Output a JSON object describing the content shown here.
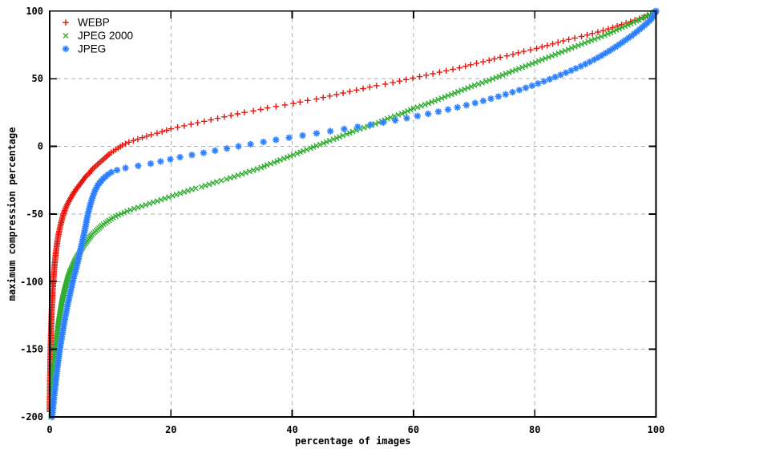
{
  "chart_data": {
    "type": "scatter",
    "title": "",
    "xlabel": "percentage of images",
    "ylabel": "maximum compression percentage",
    "xlim": [
      0,
      100
    ],
    "ylim": [
      -200,
      100
    ],
    "xticks": [
      0,
      20,
      40,
      60,
      80,
      100
    ],
    "yticks": [
      -200,
      -150,
      -100,
      -50,
      0,
      50,
      100
    ],
    "grid": true,
    "grid_color": "#b0b0b0",
    "axis_color": "#000000",
    "legend": {
      "position": "top-left",
      "entries": [
        {
          "label": "WEBP",
          "marker": "plus",
          "color": "#e8140c"
        },
        {
          "label": "JPEG 2000",
          "marker": "cross",
          "color": "#2fae2f"
        },
        {
          "label": "JPEG",
          "marker": "asterisk",
          "color": "#2c7fff"
        }
      ]
    },
    "series": [
      {
        "name": "WEBP",
        "marker": "plus",
        "color": "#e8140c",
        "marker_y_step": 1.1,
        "points": [
          [
            0,
            -196
          ],
          [
            0.05,
            -178
          ],
          [
            0.1,
            -162
          ],
          [
            0.15,
            -150
          ],
          [
            0.2,
            -141
          ],
          [
            0.3,
            -126
          ],
          [
            0.4,
            -115
          ],
          [
            0.5,
            -106
          ],
          [
            0.65,
            -96
          ],
          [
            0.8,
            -88
          ],
          [
            1.0,
            -79
          ],
          [
            1.2,
            -72
          ],
          [
            1.5,
            -64
          ],
          [
            1.8,
            -58
          ],
          [
            2.2,
            -51
          ],
          [
            2.6,
            -46
          ],
          [
            3,
            -42
          ],
          [
            3.5,
            -38
          ],
          [
            4,
            -34
          ],
          [
            4.5,
            -31
          ],
          [
            5,
            -28
          ],
          [
            5.5,
            -25
          ],
          [
            6,
            -22
          ],
          [
            6.5,
            -20
          ],
          [
            7,
            -17
          ],
          [
            7.5,
            -15
          ],
          [
            8,
            -13
          ],
          [
            8.5,
            -11
          ],
          [
            9,
            -9
          ],
          [
            9.5,
            -7
          ],
          [
            10,
            -5
          ],
          [
            10.7,
            -3
          ],
          [
            11.4,
            -1
          ],
          [
            12,
            1
          ],
          [
            13,
            3
          ],
          [
            14,
            4.5
          ],
          [
            15,
            6
          ],
          [
            16,
            7.5
          ],
          [
            17,
            9
          ],
          [
            18,
            10
          ],
          [
            19,
            11.5
          ],
          [
            20,
            13
          ],
          [
            22,
            15
          ],
          [
            24,
            17
          ],
          [
            26,
            19
          ],
          [
            28,
            21
          ],
          [
            30,
            23
          ],
          [
            32,
            25
          ],
          [
            34,
            26.5
          ],
          [
            36,
            28.5
          ],
          [
            38,
            30
          ],
          [
            40,
            31.5
          ],
          [
            42,
            33.5
          ],
          [
            44,
            35
          ],
          [
            46,
            37
          ],
          [
            48,
            39
          ],
          [
            50,
            41
          ],
          [
            52,
            43
          ],
          [
            54,
            45
          ],
          [
            56,
            46.5
          ],
          [
            58,
            48.5
          ],
          [
            60,
            50.5
          ],
          [
            62,
            52.5
          ],
          [
            64,
            54.5
          ],
          [
            66,
            56.5
          ],
          [
            68,
            58.5
          ],
          [
            70,
            61
          ],
          [
            72,
            63
          ],
          [
            74,
            65.5
          ],
          [
            76,
            67.5
          ],
          [
            78,
            70
          ],
          [
            80,
            72
          ],
          [
            82,
            74.5
          ],
          [
            84,
            77
          ],
          [
            86,
            79.5
          ],
          [
            88,
            81.5
          ],
          [
            90,
            84
          ],
          [
            92,
            86.5
          ],
          [
            94,
            89.5
          ],
          [
            95,
            91
          ],
          [
            96,
            92.5
          ],
          [
            97,
            94
          ],
          [
            98,
            95.5
          ],
          [
            99,
            97.5
          ],
          [
            99.5,
            98.5
          ],
          [
            100,
            100
          ]
        ]
      },
      {
        "name": "JPEG 2000",
        "marker": "cross",
        "color": "#2fae2f",
        "marker_y_step": 0.95,
        "points": [
          [
            0.2,
            -200
          ],
          [
            0.3,
            -191
          ],
          [
            0.4,
            -183
          ],
          [
            0.5,
            -176
          ],
          [
            0.6,
            -169
          ],
          [
            0.75,
            -160
          ],
          [
            0.9,
            -153
          ],
          [
            1.05,
            -146
          ],
          [
            1.2,
            -140
          ],
          [
            1.4,
            -132
          ],
          [
            1.6,
            -126
          ],
          [
            1.85,
            -119
          ],
          [
            2.1,
            -113
          ],
          [
            2.4,
            -107
          ],
          [
            2.7,
            -102
          ],
          [
            3,
            -97
          ],
          [
            3.4,
            -92
          ],
          [
            3.8,
            -88
          ],
          [
            4.2,
            -84
          ],
          [
            4.6,
            -81
          ],
          [
            5,
            -78
          ],
          [
            5.5,
            -74
          ],
          [
            6,
            -71
          ],
          [
            6.5,
            -68
          ],
          [
            7,
            -65
          ],
          [
            7.5,
            -63
          ],
          [
            8,
            -61
          ],
          [
            8.7,
            -58
          ],
          [
            9.4,
            -56
          ],
          [
            10,
            -54
          ],
          [
            11,
            -51.5
          ],
          [
            12,
            -49.5
          ],
          [
            13,
            -47.5
          ],
          [
            14,
            -46
          ],
          [
            15,
            -44.5
          ],
          [
            16,
            -43
          ],
          [
            17,
            -41.5
          ],
          [
            18,
            -40
          ],
          [
            19,
            -38.5
          ],
          [
            20,
            -37
          ],
          [
            21,
            -35.5
          ],
          [
            22,
            -34
          ],
          [
            23,
            -32.5
          ],
          [
            24,
            -31
          ],
          [
            25,
            -30
          ],
          [
            26,
            -28.5
          ],
          [
            27,
            -27
          ],
          [
            28,
            -25.5
          ],
          [
            29,
            -24.5
          ],
          [
            30,
            -23
          ],
          [
            31,
            -21.5
          ],
          [
            32,
            -20
          ],
          [
            33,
            -18.5
          ],
          [
            34,
            -17
          ],
          [
            35,
            -15.5
          ],
          [
            36,
            -13.5
          ],
          [
            37,
            -12
          ],
          [
            38,
            -10
          ],
          [
            39,
            -8.5
          ],
          [
            40,
            -6.5
          ],
          [
            41,
            -5
          ],
          [
            42,
            -3
          ],
          [
            43,
            -1.5
          ],
          [
            44,
            0.5
          ],
          [
            45,
            2
          ],
          [
            46,
            4
          ],
          [
            47,
            5.5
          ],
          [
            48,
            7.5
          ],
          [
            49,
            9
          ],
          [
            50,
            11
          ],
          [
            51,
            12.5
          ],
          [
            52,
            14
          ],
          [
            53,
            15.5
          ],
          [
            54,
            17
          ],
          [
            55,
            19
          ],
          [
            56,
            21
          ],
          [
            57,
            22.5
          ],
          [
            58,
            24
          ],
          [
            59,
            26
          ],
          [
            60,
            28
          ],
          [
            62,
            31
          ],
          [
            64,
            34.5
          ],
          [
            66,
            38
          ],
          [
            68,
            41.5
          ],
          [
            70,
            45
          ],
          [
            72,
            48
          ],
          [
            74,
            51.5
          ],
          [
            76,
            55
          ],
          [
            78,
            58.5
          ],
          [
            80,
            62
          ],
          [
            82,
            65.5
          ],
          [
            84,
            69
          ],
          [
            86,
            72.5
          ],
          [
            88,
            76
          ],
          [
            90,
            79.5
          ],
          [
            92,
            83
          ],
          [
            94,
            87
          ],
          [
            95,
            89
          ],
          [
            96,
            91
          ],
          [
            97,
            93
          ],
          [
            98,
            95.5
          ],
          [
            99,
            97.5
          ],
          [
            100,
            100
          ]
        ]
      },
      {
        "name": "JPEG",
        "marker": "asterisk",
        "color": "#2c7fff",
        "halo_color": "#8ab8ff",
        "marker_y_step": 1.6,
        "points": [
          [
            0.4,
            -200
          ],
          [
            0.55,
            -193
          ],
          [
            0.7,
            -186
          ],
          [
            0.85,
            -180
          ],
          [
            1.0,
            -174
          ],
          [
            1.2,
            -166
          ],
          [
            1.4,
            -159
          ],
          [
            1.6,
            -152
          ],
          [
            1.85,
            -145
          ],
          [
            2.1,
            -138
          ],
          [
            2.4,
            -130
          ],
          [
            2.7,
            -123
          ],
          [
            3.0,
            -116
          ],
          [
            3.3,
            -110
          ],
          [
            3.6,
            -104
          ],
          [
            3.9,
            -98
          ],
          [
            4.2,
            -93
          ],
          [
            4.5,
            -88
          ],
          [
            4.8,
            -82
          ],
          [
            5.1,
            -76
          ],
          [
            5.4,
            -70
          ],
          [
            5.7,
            -64
          ],
          [
            6.0,
            -57
          ],
          [
            6.3,
            -50
          ],
          [
            6.6,
            -45
          ],
          [
            6.9,
            -40
          ],
          [
            7.2,
            -36
          ],
          [
            7.5,
            -32.5
          ],
          [
            7.9,
            -29
          ],
          [
            8.3,
            -26.5
          ],
          [
            8.8,
            -24
          ],
          [
            9.4,
            -21.5
          ],
          [
            10,
            -19.5
          ],
          [
            10.8,
            -18
          ],
          [
            11.7,
            -16.8
          ],
          [
            12.7,
            -15.8
          ],
          [
            14,
            -14.8
          ],
          [
            15.5,
            -13.8
          ],
          [
            17,
            -12.5
          ],
          [
            18.5,
            -11
          ],
          [
            20,
            -9.5
          ],
          [
            21.5,
            -8
          ],
          [
            23,
            -6.8
          ],
          [
            24.5,
            -5.5
          ],
          [
            26,
            -4.3
          ],
          [
            27.5,
            -3
          ],
          [
            29,
            -1.8
          ],
          [
            30.5,
            -0.5
          ],
          [
            32,
            0.7
          ],
          [
            33.5,
            1.9
          ],
          [
            35,
            3
          ],
          [
            36.5,
            4.2
          ],
          [
            38,
            5.3
          ],
          [
            40,
            6.8
          ],
          [
            42,
            8.2
          ],
          [
            44,
            9.6
          ],
          [
            46,
            11
          ],
          [
            48,
            12.4
          ],
          [
            50,
            13.8
          ],
          [
            52,
            15.3
          ],
          [
            54,
            16.8
          ],
          [
            56,
            18.4
          ],
          [
            58,
            20
          ],
          [
            60,
            21.8
          ],
          [
            62,
            23.6
          ],
          [
            64,
            25.5
          ],
          [
            66,
            27.5
          ],
          [
            68,
            29.6
          ],
          [
            70,
            31.8
          ],
          [
            72,
            34.2
          ],
          [
            74,
            36.8
          ],
          [
            76,
            39.5
          ],
          [
            78,
            42.4
          ],
          [
            80,
            45.5
          ],
          [
            82,
            48.8
          ],
          [
            84,
            52.3
          ],
          [
            86,
            56
          ],
          [
            88,
            60
          ],
          [
            90,
            64.5
          ],
          [
            91.5,
            68.3
          ],
          [
            93,
            72.5
          ],
          [
            94.5,
            77
          ],
          [
            96,
            81.8
          ],
          [
            97,
            85.3
          ],
          [
            98,
            89
          ],
          [
            99,
            93
          ],
          [
            99.5,
            95.8
          ],
          [
            100,
            100
          ]
        ]
      }
    ]
  }
}
